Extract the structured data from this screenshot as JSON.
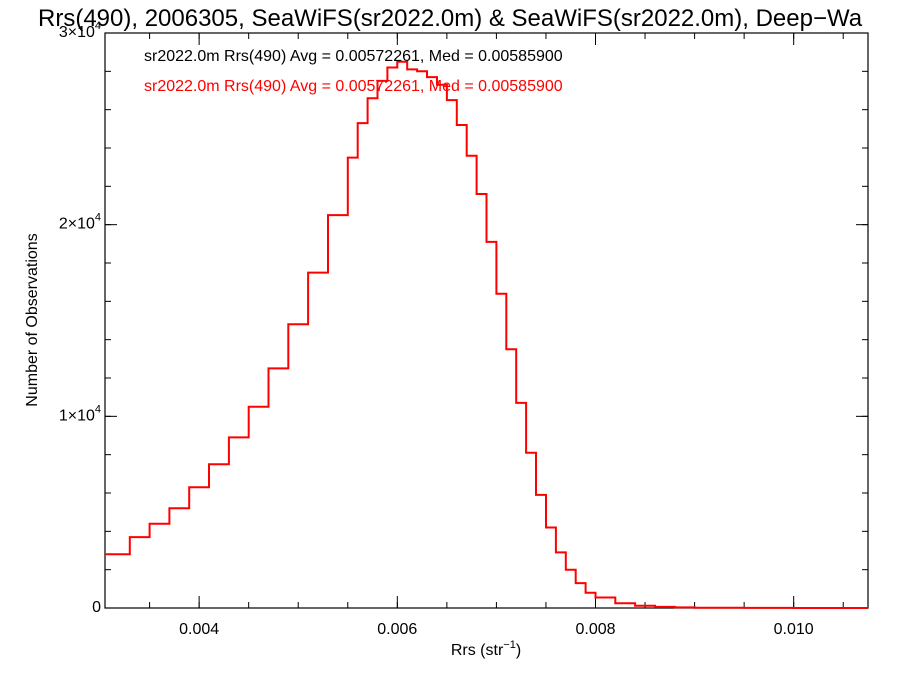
{
  "chart_data": {
    "type": "line",
    "title": "Rrs(490), 2006305, SeaWiFS(sr2022.0m) & SeaWiFS(sr2022.0m), Deep−Wa",
    "xlabel": "Rrs (str",
    "xlabel_sup": "−1",
    "xlabel_suffix": ")",
    "ylabel": "Number of Observations",
    "xlim": [
      0.00305,
      0.01075
    ],
    "ylim": [
      0,
      30000
    ],
    "x_ticks": [
      {
        "value": 0.004,
        "label": "0.004"
      },
      {
        "value": 0.006,
        "label": "0.006"
      },
      {
        "value": 0.008,
        "label": "0.008"
      },
      {
        "value": 0.01,
        "label": "0.010"
      }
    ],
    "x_minor_step": 0.0005,
    "y_ticks": [
      {
        "value": 0,
        "label": "0",
        "sup": ""
      },
      {
        "value": 10000,
        "label": "1×10",
        "sup": "4"
      },
      {
        "value": 20000,
        "label": "2×10",
        "sup": "4"
      },
      {
        "value": 30000,
        "label": "3×10",
        "sup": "4"
      }
    ],
    "y_minor_step": 2000,
    "annotations": [
      {
        "text": "sr2022.0m Rrs(490) Avg = 0.00572261, Med = 0.00585900",
        "color": "#000000"
      },
      {
        "text": "sr2022.0m Rrs(490) Avg = 0.00572261, Med = 0.00585900",
        "color": "#ff0000"
      }
    ],
    "series": [
      {
        "color": "#ff0000",
        "x": [
          0.00305,
          0.0033,
          0.0035,
          0.0037,
          0.0039,
          0.0041,
          0.0043,
          0.0045,
          0.0047,
          0.0049,
          0.0051,
          0.0053,
          0.0055,
          0.0056,
          0.0057,
          0.0058,
          0.0059,
          0.006,
          0.0061,
          0.0062,
          0.0063,
          0.0064,
          0.0065,
          0.0066,
          0.0067,
          0.0068,
          0.0069,
          0.007,
          0.0071,
          0.0072,
          0.0073,
          0.0074,
          0.0075,
          0.0076,
          0.0077,
          0.0078,
          0.0079,
          0.008,
          0.0082,
          0.0084,
          0.0086,
          0.0088,
          0.009,
          0.0095,
          0.01,
          0.0105,
          0.01075
        ],
        "y": [
          2800,
          3700,
          4400,
          5200,
          6300,
          7500,
          8900,
          10500,
          12500,
          14800,
          17500,
          20500,
          23500,
          25300,
          26600,
          27500,
          28200,
          28500,
          28100,
          28000,
          27700,
          27300,
          26500,
          25200,
          23600,
          21600,
          19100,
          16400,
          13500,
          10700,
          8100,
          5900,
          4200,
          2900,
          2000,
          1300,
          800,
          550,
          250,
          120,
          60,
          30,
          15,
          5,
          2,
          0,
          0
        ]
      }
    ]
  }
}
